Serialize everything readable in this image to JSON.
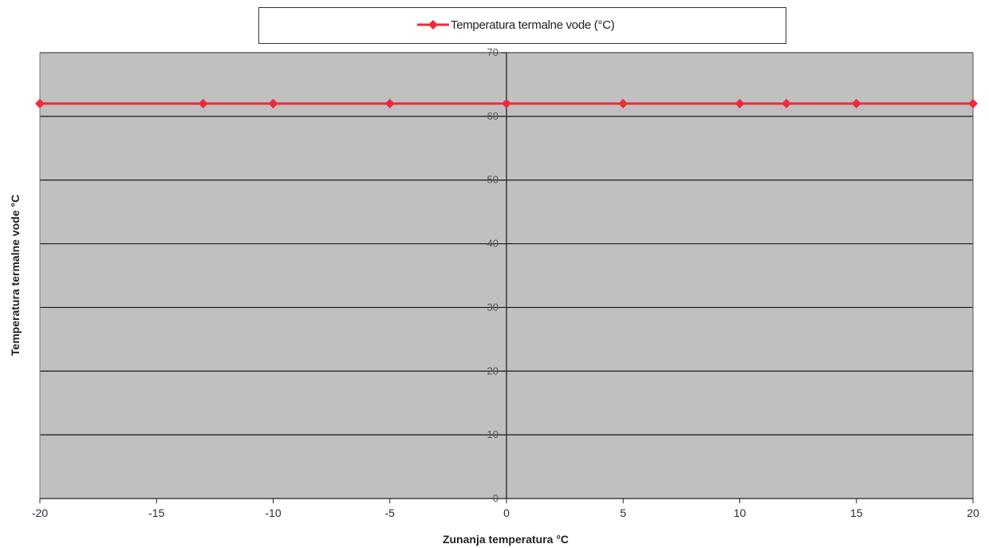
{
  "chart_data": {
    "type": "line",
    "title": "",
    "xlabel": "Zunanja temperatura °C",
    "ylabel": "Temperatura termalne vode °C",
    "xlim": [
      -20,
      20
    ],
    "ylim": [
      0,
      70
    ],
    "x_ticks": [
      "-20",
      "-15",
      "-10",
      "-5",
      "0",
      "5",
      "10",
      "15",
      "20"
    ],
    "y_ticks": [
      "0",
      "10",
      "20",
      "30",
      "40",
      "50",
      "60",
      "70"
    ],
    "grid": "horizontal",
    "legend_position": "top",
    "series": [
      {
        "name": "Temperatura termalne vode (°C)",
        "color": "#ee2a3c",
        "marker": "diamond",
        "x": [
          -20,
          -13,
          -10,
          -5,
          0,
          5,
          10,
          12,
          15,
          20
        ],
        "y": [
          62,
          62,
          62,
          62,
          62,
          62,
          62,
          62,
          62,
          62
        ]
      }
    ]
  },
  "colors": {
    "plot_background": "#c0c0c0",
    "gridline": "#1a1a1a",
    "series_line": "#ee2a3c"
  }
}
